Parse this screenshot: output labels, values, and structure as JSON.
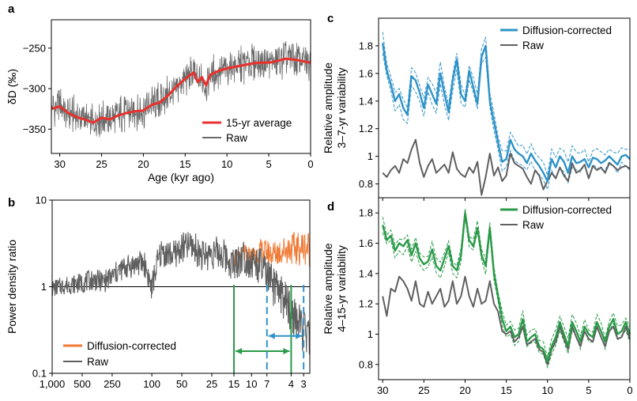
{
  "chart_data": [
    {
      "panel": "a",
      "type": "line",
      "ylabel": "δD (‰)",
      "xlabel": "Age (kyr ago)",
      "xlim": [
        31,
        0
      ],
      "ylim": [
        -380,
        -215
      ],
      "xticks": [
        30,
        25,
        20,
        15,
        10,
        5,
        0
      ],
      "yticks": [
        -350,
        -300,
        -250
      ],
      "legend_position": "bottom-right",
      "series": [
        {
          "name": "15-yr average",
          "color": "#e8312d",
          "x": [
            31,
            30,
            29,
            28,
            27,
            26,
            25,
            24,
            23,
            22,
            21,
            20,
            19,
            18,
            17,
            16,
            15,
            14,
            13.5,
            13,
            12.5,
            12,
            11,
            10,
            9,
            8,
            7,
            6,
            5,
            4,
            3,
            2,
            1,
            0
          ],
          "values": [
            -325,
            -322,
            -330,
            -335,
            -338,
            -342,
            -336,
            -338,
            -333,
            -330,
            -328,
            -327,
            -320,
            -317,
            -308,
            -297,
            -288,
            -280,
            -292,
            -286,
            -296,
            -283,
            -278,
            -275,
            -273,
            -271,
            -269,
            -268,
            -268,
            -266,
            -263,
            -264,
            -266,
            -268
          ]
        },
        {
          "name": "Raw",
          "color": "#6a6a6a",
          "band": "±30 about the 15-yr average"
        }
      ]
    },
    {
      "panel": "b",
      "type": "line",
      "ylabel": "Power density ratio",
      "xscale": "log-reciprocal",
      "yscale": "log",
      "xlabel": "",
      "xlim": [
        1000,
        2.6
      ],
      "ylim": [
        0.1,
        10
      ],
      "xtick_labels": [
        "1,000",
        "500",
        "250",
        "100",
        "50",
        "25",
        "15",
        "10",
        "7",
        "4",
        "3"
      ],
      "xtick_values": [
        1000,
        500,
        250,
        100,
        50,
        25,
        15,
        10,
        7,
        4,
        3
      ],
      "ytick_labels": [
        "10",
        "1",
        "0.1"
      ],
      "ytick_values": [
        10,
        1,
        0.1
      ],
      "reference_line": 1,
      "legend_position": "bottom-left",
      "series": [
        {
          "name": "Raw",
          "color": "#5f5f5f",
          "x": [
            1000,
            700,
            500,
            400,
            300,
            250,
            200,
            150,
            120,
            100,
            80,
            60,
            50,
            40,
            30,
            25,
            20,
            15,
            12,
            10,
            8,
            7,
            6,
            5,
            4,
            3.5,
            3,
            2.7
          ],
          "values": [
            0.95,
            1.05,
            1.1,
            1.2,
            1.15,
            1.3,
            1.6,
            1.8,
            1.9,
            0.9,
            2.5,
            2.3,
            2.8,
            3.0,
            2.2,
            2.5,
            2.4,
            1.8,
            2.3,
            1.9,
            1.7,
            1.3,
            1.0,
            0.8,
            0.5,
            0.4,
            0.3,
            0.25
          ]
        },
        {
          "name": "Diffusion-corrected",
          "color": "#f07a35",
          "x": [
            15,
            12,
            10,
            8,
            7,
            6,
            5,
            4,
            3.5,
            3,
            2.7
          ],
          "values": [
            1.9,
            2.4,
            2.2,
            2.6,
            2.5,
            2.4,
            2.6,
            2.8,
            2.7,
            2.9,
            2.8
          ]
        }
      ],
      "bands": [
        {
          "name": "4–15-yr band",
          "from": 15,
          "to": 4,
          "color": "#2a9a48"
        },
        {
          "name": "3–7-yr band",
          "from": 7,
          "to": 3,
          "color": "#2f93c8"
        }
      ]
    },
    {
      "panel": "c",
      "type": "line",
      "ylabel": "Relative amplitude 3–7-yr variability",
      "ylabel_lines": [
        "Relative amplitude",
        "3–7-yr variability"
      ],
      "xlim": [
        30.5,
        0
      ],
      "ylim": [
        0.7,
        2.0
      ],
      "xticks": [
        30,
        25,
        20,
        15,
        10,
        5,
        0
      ],
      "yticks": [
        0.8,
        1,
        1.2,
        1.4,
        1.6,
        1.8
      ],
      "legend_position": "top-right",
      "x": [
        30,
        29.5,
        29,
        28.5,
        28,
        27.5,
        27,
        26.5,
        26,
        25.5,
        25,
        24.5,
        24,
        23.5,
        23,
        22.5,
        22,
        21.5,
        21,
        20.5,
        20,
        19.5,
        19,
        18.5,
        18,
        17.5,
        17,
        16.5,
        16,
        15.5,
        15,
        14.5,
        14,
        13.5,
        13,
        12.5,
        12,
        11.5,
        11,
        10.5,
        10,
        9.5,
        9,
        8.5,
        8,
        7.5,
        7,
        6.5,
        6,
        5.5,
        5,
        4.5,
        4,
        3.5,
        3,
        2.5,
        2,
        1.5,
        1,
        0.5,
        0
      ],
      "series": [
        {
          "name": "Diffusion-corrected",
          "color": "#2f93c8",
          "dashed_band": 0.06,
          "values": [
            1.82,
            1.62,
            1.52,
            1.4,
            1.45,
            1.35,
            1.3,
            1.58,
            1.55,
            1.46,
            1.35,
            1.52,
            1.45,
            1.38,
            1.6,
            1.45,
            1.32,
            1.55,
            1.7,
            1.45,
            1.4,
            1.62,
            1.5,
            1.38,
            1.72,
            1.8,
            1.4,
            1.25,
            1.1,
            0.96,
            0.98,
            1.12,
            1.05,
            1.02,
            1.0,
            0.95,
            1.02,
            0.97,
            0.93,
            0.88,
            0.82,
            0.98,
            0.92,
            1.0,
            0.96,
            0.88,
            1.0,
            0.95,
            0.96,
            0.98,
            0.92,
            0.99,
            0.98,
            0.95,
            0.97,
            1.0,
            0.97,
            0.94,
            1.0,
            1.01,
            0.98
          ]
        },
        {
          "name": "Raw",
          "color": "#5f5f5f",
          "values": [
            0.88,
            0.85,
            0.9,
            0.93,
            0.88,
            0.98,
            0.95,
            1.05,
            1.12,
            0.95,
            0.85,
            0.93,
            0.98,
            0.88,
            0.91,
            0.94,
            0.88,
            1.03,
            0.91,
            0.87,
            0.85,
            0.92,
            0.88,
            0.96,
            0.72,
            0.85,
            1.02,
            0.86,
            0.92,
            0.82,
            0.86,
            1.02,
            0.95,
            0.93,
            0.91,
            0.85,
            0.8,
            0.9,
            0.86,
            0.76,
            0.82,
            0.88,
            0.84,
            0.92,
            0.86,
            0.82,
            0.95,
            0.88,
            0.9,
            0.94,
            0.84,
            0.93,
            0.9,
            0.92,
            0.88,
            0.95,
            0.93,
            0.9,
            0.92,
            0.93,
            0.91
          ]
        }
      ]
    },
    {
      "panel": "d",
      "type": "line",
      "ylabel": "Relative amplitude 4–15-yr variability",
      "ylabel_lines": [
        "Relative amplitude",
        "4–15-yr variability"
      ],
      "xlim": [
        30.5,
        0
      ],
      "ylim": [
        0.7,
        1.9
      ],
      "xticks": [
        30,
        25,
        20,
        15,
        10,
        5,
        0
      ],
      "yticks": [
        0.8,
        1,
        1.2,
        1.4,
        1.6,
        1.8
      ],
      "legend_position": "top-right",
      "x": [
        30,
        29.5,
        29,
        28.5,
        28,
        27.5,
        27,
        26.5,
        26,
        25.5,
        25,
        24.5,
        24,
        23.5,
        23,
        22.5,
        22,
        21.5,
        21,
        20.5,
        20,
        19.5,
        19,
        18.5,
        18,
        17.5,
        17,
        16.5,
        16,
        15.5,
        15,
        14.5,
        14,
        13.5,
        13,
        12.5,
        12,
        11.5,
        11,
        10.5,
        10,
        9.5,
        9,
        8.5,
        8,
        7.5,
        7,
        6.5,
        6,
        5.5,
        5,
        4.5,
        4,
        3.5,
        3,
        2.5,
        2,
        1.5,
        1,
        0.5,
        0
      ],
      "series": [
        {
          "name": "Diffusion-corrected",
          "color": "#2a9a48",
          "dashed_band": 0.04,
          "values": [
            1.72,
            1.62,
            1.65,
            1.55,
            1.6,
            1.58,
            1.62,
            1.52,
            1.6,
            1.5,
            1.46,
            1.48,
            1.56,
            1.45,
            1.42,
            1.5,
            1.58,
            1.45,
            1.42,
            1.52,
            1.8,
            1.62,
            1.58,
            1.7,
            1.52,
            1.45,
            1.7,
            1.4,
            1.25,
            1.1,
            1.02,
            1.05,
            0.98,
            1.0,
            1.1,
            0.95,
            0.98,
            1.0,
            0.92,
            0.9,
            0.82,
            0.92,
            0.98,
            1.08,
            1.0,
            0.92,
            1.08,
            1.02,
            0.95,
            1.05,
            1.0,
            0.98,
            1.08,
            1.02,
            0.95,
            1.05,
            1.1,
            1.0,
            1.02,
            1.08,
            1.0
          ]
        },
        {
          "name": "Raw",
          "color": "#5f5f5f",
          "values": [
            1.25,
            1.12,
            1.3,
            1.28,
            1.38,
            1.35,
            1.3,
            1.22,
            1.35,
            1.2,
            1.18,
            1.28,
            1.2,
            1.25,
            1.3,
            1.18,
            1.22,
            1.35,
            1.2,
            1.25,
            1.38,
            1.25,
            1.18,
            1.3,
            1.2,
            1.22,
            1.35,
            1.2,
            1.15,
            1.02,
            1.0,
            1.02,
            0.95,
            0.98,
            1.05,
            0.93,
            0.95,
            0.97,
            0.9,
            0.88,
            0.8,
            0.9,
            0.95,
            1.05,
            0.97,
            0.9,
            1.05,
            0.98,
            0.92,
            1.02,
            0.97,
            0.95,
            1.05,
            0.98,
            0.92,
            1.02,
            1.05,
            0.97,
            0.98,
            1.05,
            0.97
          ]
        }
      ]
    }
  ]
}
